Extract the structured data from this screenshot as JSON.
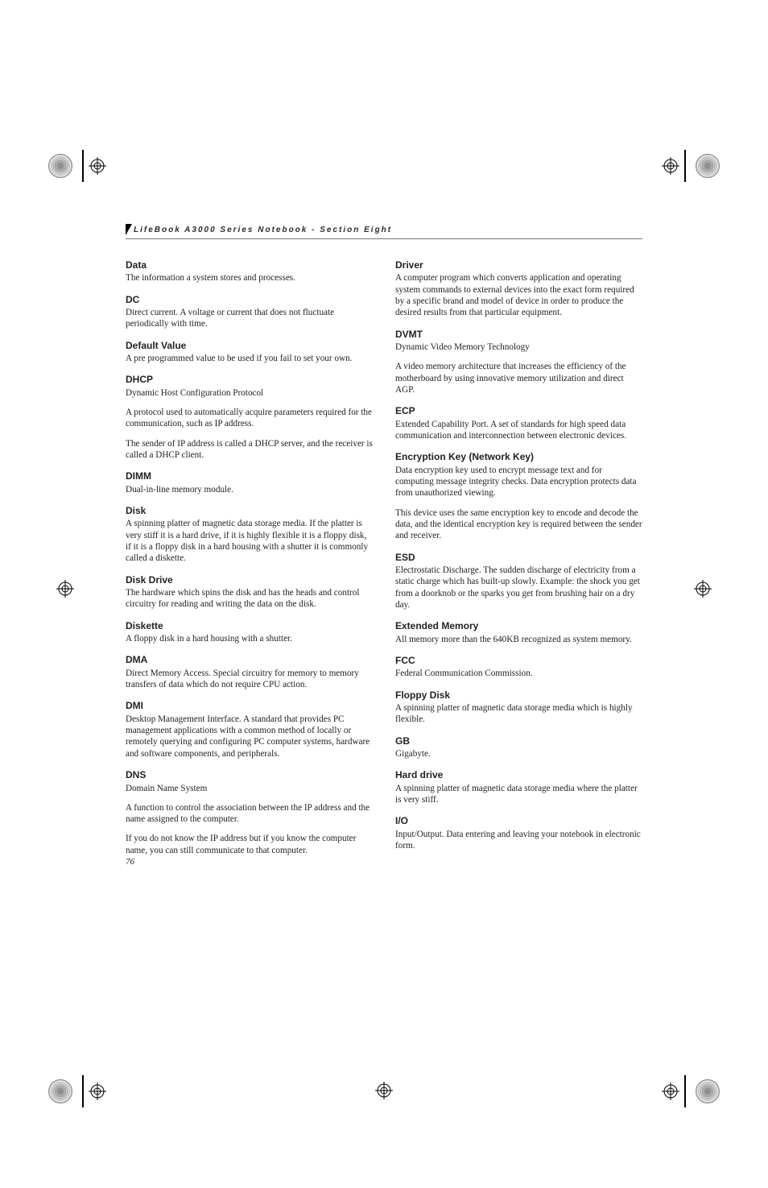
{
  "running_head": "LifeBook A3000 Series Notebook - Section Eight",
  "page_number": "76",
  "glossary": [
    {
      "term": "Data",
      "paragraphs": [
        "The information a system stores and processes."
      ]
    },
    {
      "term": "DC",
      "paragraphs": [
        "Direct current. A voltage or current that does not fluctuate periodically with time."
      ]
    },
    {
      "term": "Default Value",
      "paragraphs": [
        "A pre programmed value to be used if you fail to set your own."
      ]
    },
    {
      "term": "DHCP",
      "paragraphs": [
        "Dynamic Host Configuration Protocol",
        "A protocol used to automatically acquire parameters required for the communication, such as IP address.",
        "The sender of IP address is called a DHCP server, and the receiver is called a DHCP client."
      ]
    },
    {
      "term": "DIMM",
      "paragraphs": [
        "Dual-in-line memory module."
      ]
    },
    {
      "term": "Disk",
      "paragraphs": [
        "A spinning platter of magnetic data storage media. If the platter is very stiff it is a hard drive, if it is highly flexible it is a floppy disk, if it is a floppy disk in a hard housing with a shutter it is commonly called a diskette."
      ]
    },
    {
      "term": "Disk Drive",
      "paragraphs": [
        "The hardware which spins the disk and has the heads and control circuitry for reading and writing the data on the disk."
      ]
    },
    {
      "term": "Diskette",
      "paragraphs": [
        "A floppy disk in a hard housing with a shutter."
      ]
    },
    {
      "term": "DMA",
      "paragraphs": [
        "Direct Memory Access. Special circuitry for memory to memory transfers of data which do not require CPU action."
      ]
    },
    {
      "term": "DMI",
      "paragraphs": [
        "Desktop Management Interface. A standard that provides PC management applications with a common method of locally or remotely querying and configuring PC computer systems, hardware and software components, and peripherals."
      ]
    },
    {
      "term": "DNS",
      "paragraphs": [
        "Domain Name System",
        "A function to control the association between the IP address and the name assigned to the computer.",
        "If you do not know the IP address but if you know the computer name, you can still communicate to that computer."
      ]
    },
    {
      "term": "Driver",
      "paragraphs": [
        "A computer program which converts application and operating system commands to external devices into the exact form required by a specific brand and model of device in order to produce the desired results from that particular equipment."
      ]
    },
    {
      "term": "DVMT",
      "paragraphs": [
        "Dynamic Video Memory Technology",
        "A video memory architecture that increases the efficiency of the motherboard by using innovative memory utilization and direct AGP."
      ]
    },
    {
      "term": "ECP",
      "paragraphs": [
        "Extended Capability Port. A set of standards for high speed data communication and interconnection between electronic devices."
      ]
    },
    {
      "term": "Encryption Key (Network Key)",
      "paragraphs": [
        "Data encryption key used to encrypt message text and for computing message integrity checks. Data encryption protects data from unauthorized viewing.",
        "This device uses the same encryption key to encode and decode the data, and the identical encryption key is required between the sender and receiver."
      ]
    },
    {
      "term": "ESD",
      "paragraphs": [
        "Electrostatic Discharge. The sudden discharge of electricity from a static charge which has built-up slowly. Example: the shock you get from a doorknob or the sparks you get from brushing hair on a dry day."
      ]
    },
    {
      "term": "Extended Memory",
      "paragraphs": [
        "All memory more than the 640KB recognized as system memory."
      ]
    },
    {
      "term": "FCC",
      "paragraphs": [
        "Federal Communication Commission."
      ]
    },
    {
      "term": "Floppy Disk",
      "paragraphs": [
        "A spinning platter of magnetic data storage media which is highly flexible."
      ]
    },
    {
      "term": "GB",
      "paragraphs": [
        "Gigabyte."
      ]
    },
    {
      "term": "Hard drive",
      "paragraphs": [
        "A spinning platter of magnetic data storage media where the platter is very stiff."
      ]
    },
    {
      "term": "I/O",
      "paragraphs": [
        "Input/Output. Data entering and leaving your notebook in electronic form."
      ]
    }
  ]
}
